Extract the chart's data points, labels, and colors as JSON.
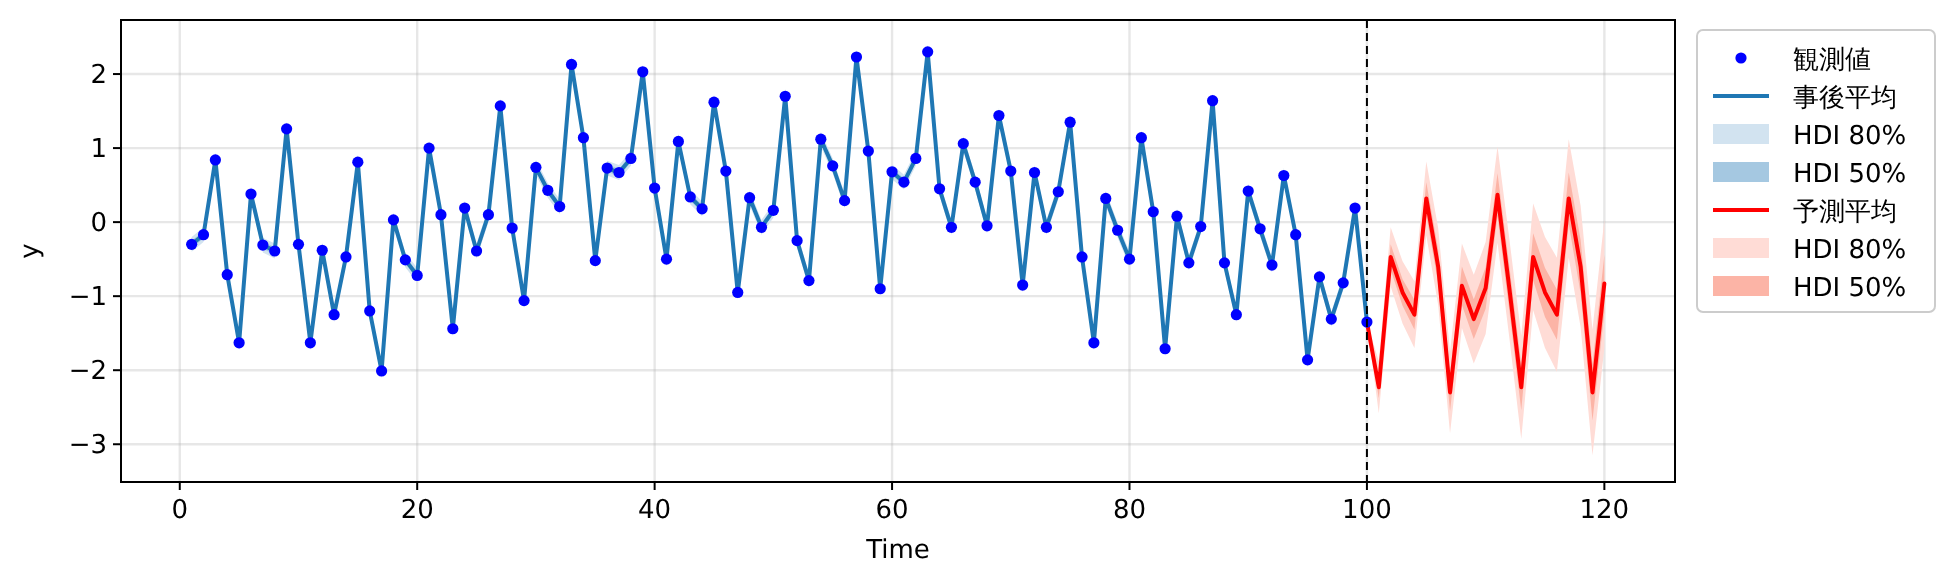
{
  "chart_data": {
    "type": "line",
    "xlabel": "Time",
    "ylabel": "y",
    "xlim": [
      -4.95,
      125.95
    ],
    "ylim": [
      -3.51,
      2.73
    ],
    "xticks": [
      0,
      20,
      40,
      60,
      80,
      100,
      120
    ],
    "yticks": [
      {
        "value": -3,
        "label": "−3"
      },
      {
        "value": -2,
        "label": "−2"
      },
      {
        "value": -1,
        "label": "−1"
      },
      0,
      1,
      2
    ],
    "grid": true,
    "legend": "right",
    "ref_lines": [
      {
        "axis": "x",
        "value": 100,
        "color": "#000000",
        "line_style": "dashed"
      }
    ],
    "x": [
      1,
      2,
      3,
      4,
      5,
      6,
      7,
      8,
      9,
      10,
      11,
      12,
      13,
      14,
      15,
      16,
      17,
      18,
      19,
      20,
      21,
      22,
      23,
      24,
      25,
      26,
      27,
      28,
      29,
      30,
      31,
      32,
      33,
      34,
      35,
      36,
      37,
      38,
      39,
      40,
      41,
      42,
      43,
      44,
      45,
      46,
      47,
      48,
      49,
      50,
      51,
      52,
      53,
      54,
      55,
      56,
      57,
      58,
      59,
      60,
      61,
      62,
      63,
      64,
      65,
      66,
      67,
      68,
      69,
      70,
      71,
      72,
      73,
      74,
      75,
      76,
      77,
      78,
      79,
      80,
      81,
      82,
      83,
      84,
      85,
      86,
      87,
      88,
      89,
      90,
      91,
      92,
      93,
      94,
      95,
      96,
      97,
      98,
      99,
      100
    ],
    "series": [
      {
        "name": "観測値",
        "type": "scatter",
        "marker": "circle",
        "color": "#0000ff",
        "values": [
          -0.3,
          -0.17,
          0.84,
          -0.71,
          -1.63,
          0.38,
          -0.31,
          -0.39,
          1.26,
          -0.3,
          -1.63,
          -0.38,
          -1.25,
          -0.47,
          0.81,
          -1.2,
          -2.01,
          0.03,
          -0.51,
          -0.72,
          1.0,
          0.1,
          -1.44,
          0.19,
          -0.39,
          0.1,
          1.57,
          -0.08,
          -1.06,
          0.74,
          0.43,
          0.21,
          2.13,
          1.14,
          -0.52,
          0.73,
          0.67,
          0.86,
          2.03,
          0.46,
          -0.5,
          1.09,
          0.34,
          0.18,
          1.62,
          0.69,
          -0.95,
          0.33,
          -0.07,
          0.16,
          1.7,
          -0.25,
          -0.79,
          1.12,
          0.76,
          0.29,
          2.23,
          0.96,
          -0.9,
          0.68,
          0.54,
          0.86,
          2.3,
          0.45,
          -0.07,
          1.06,
          0.54,
          -0.05,
          1.44,
          0.69,
          -0.85,
          0.67,
          -0.07,
          0.41,
          1.35,
          -0.47,
          -1.63,
          0.32,
          -0.11,
          -0.5,
          1.14,
          0.14,
          -1.71,
          0.08,
          -0.55,
          -0.06,
          1.64,
          -0.55,
          -1.25,
          0.42,
          -0.09,
          -0.58,
          0.63,
          -0.17,
          -1.86,
          -0.74,
          -1.31,
          -0.82,
          0.19,
          -1.35
        ]
      },
      {
        "name": "事後平均",
        "color": "#1f77b4",
        "values": [
          -0.3,
          -0.17,
          0.84,
          -0.71,
          -1.63,
          0.38,
          -0.31,
          -0.39,
          1.26,
          -0.3,
          -1.63,
          -0.38,
          -1.25,
          -0.47,
          0.81,
          -1.2,
          -2.01,
          0.03,
          -0.51,
          -0.72,
          1.0,
          0.1,
          -1.44,
          0.19,
          -0.39,
          0.1,
          1.57,
          -0.08,
          -1.06,
          0.74,
          0.43,
          0.21,
          2.13,
          1.14,
          -0.52,
          0.73,
          0.67,
          0.86,
          2.03,
          0.46,
          -0.5,
          1.09,
          0.34,
          0.18,
          1.62,
          0.69,
          -0.95,
          0.33,
          -0.07,
          0.16,
          1.7,
          -0.25,
          -0.79,
          1.12,
          0.76,
          0.29,
          2.23,
          0.96,
          -0.9,
          0.68,
          0.54,
          0.86,
          2.3,
          0.45,
          -0.07,
          1.06,
          0.54,
          -0.05,
          1.44,
          0.69,
          -0.85,
          0.67,
          -0.07,
          0.41,
          1.35,
          -0.47,
          -1.63,
          0.32,
          -0.11,
          -0.5,
          1.14,
          0.14,
          -1.71,
          0.08,
          -0.55,
          -0.06,
          1.64,
          -0.55,
          -1.25,
          0.42,
          -0.09,
          -0.58,
          0.63,
          -0.17,
          -1.86,
          -0.74,
          -1.31,
          -0.82,
          0.19,
          -1.35
        ]
      },
      {
        "name": "HDI 80%",
        "type": "line",
        "color": "#d2e3f0",
        "values": [
          null,
          null,
          null,
          null,
          null,
          null,
          null,
          null,
          null,
          null,
          null,
          null,
          null,
          null,
          null,
          null,
          null,
          null,
          null,
          null,
          null,
          null,
          null,
          null,
          null,
          null,
          null,
          null,
          null,
          null,
          null,
          null,
          null,
          null,
          null,
          null,
          null,
          null,
          null,
          null,
          null,
          null,
          null,
          null,
          null,
          null,
          null,
          null,
          null,
          null,
          null,
          null,
          null,
          null,
          null,
          null,
          null,
          null,
          null,
          null,
          null,
          null,
          null,
          null,
          null,
          null,
          null,
          null,
          null,
          null,
          null,
          null,
          null,
          null,
          null,
          null,
          null,
          null,
          null,
          null,
          null,
          null,
          null,
          null,
          null,
          null,
          null,
          null,
          null,
          null,
          null,
          null,
          null,
          null,
          null,
          null,
          null,
          null,
          null,
          null
        ],
        "lower": [
          -0.4,
          -0.27,
          0.74,
          -0.81,
          -1.73,
          0.28,
          -0.41,
          -0.49,
          1.16,
          -0.4,
          -1.73,
          -0.48,
          -1.35,
          -0.57,
          0.71,
          -1.3,
          -2.11,
          -0.07,
          -0.61,
          -0.82,
          0.9,
          0.0,
          -1.54,
          0.09,
          -0.49,
          0.0,
          1.47,
          -0.18,
          -1.16,
          0.64,
          0.33,
          0.11,
          2.03,
          1.04,
          -0.62,
          0.63,
          0.57,
          0.76,
          1.93,
          0.36,
          -0.6,
          0.99,
          0.24,
          0.08,
          1.52,
          0.59,
          -1.05,
          0.23,
          -0.17,
          0.06,
          1.6,
          -0.35,
          -0.89,
          1.02,
          0.66,
          0.19,
          2.13,
          0.86,
          -1.0,
          0.58,
          0.44,
          0.76,
          2.2,
          0.35,
          -0.17,
          0.96,
          0.44,
          -0.15,
          1.34,
          0.59,
          -0.95,
          0.57,
          -0.17,
          0.31,
          1.25,
          -0.57,
          -1.73,
          0.22,
          -0.21,
          -0.6,
          1.04,
          0.04,
          -1.81,
          -0.02,
          -0.65,
          -0.16,
          1.54,
          -0.65,
          -1.35,
          0.32,
          -0.19,
          -0.68,
          0.53,
          -0.27,
          -1.96,
          -0.84,
          -1.41,
          -0.92,
          0.09,
          -1.45
        ],
        "upper": [
          -0.2,
          -0.07,
          0.94,
          -0.61,
          -1.53,
          0.48,
          -0.21,
          -0.29,
          1.36,
          -0.2,
          -1.53,
          -0.28,
          -1.15,
          -0.37,
          0.91,
          -1.1,
          -1.91,
          0.13,
          -0.41,
          -0.62,
          1.1,
          0.2,
          -1.34,
          0.29,
          -0.29,
          0.2,
          1.67,
          0.02,
          -0.96,
          0.84,
          0.53,
          0.31,
          2.23,
          1.24,
          -0.42,
          0.83,
          0.77,
          0.96,
          2.13,
          0.56,
          -0.4,
          1.19,
          0.44,
          0.28,
          1.72,
          0.79,
          -0.85,
          0.43,
          0.03,
          0.26,
          1.8,
          -0.15,
          -0.69,
          1.22,
          0.86,
          0.39,
          2.33,
          1.06,
          -0.8,
          0.78,
          0.64,
          0.96,
          2.4,
          0.55,
          0.03,
          1.16,
          0.64,
          0.05,
          1.54,
          0.79,
          -0.75,
          0.77,
          0.03,
          0.51,
          1.45,
          -0.37,
          -1.53,
          0.42,
          -0.01,
          -0.4,
          1.24,
          0.24,
          -1.61,
          0.18,
          -0.45,
          0.04,
          1.74,
          -0.45,
          -1.15,
          0.52,
          0.01,
          -0.48,
          0.73,
          -0.07,
          -1.76,
          -0.64,
          -1.21,
          -0.72,
          0.29,
          -1.25
        ]
      },
      {
        "name": "HDI 50%",
        "type": "line",
        "color": "#a5c8e1",
        "values": [
          null,
          null,
          null,
          null,
          null,
          null,
          null,
          null,
          null,
          null,
          null,
          null,
          null,
          null,
          null,
          null,
          null,
          null,
          null,
          null,
          null,
          null,
          null,
          null,
          null,
          null,
          null,
          null,
          null,
          null,
          null,
          null,
          null,
          null,
          null,
          null,
          null,
          null,
          null,
          null,
          null,
          null,
          null,
          null,
          null,
          null,
          null,
          null,
          null,
          null,
          null,
          null,
          null,
          null,
          null,
          null,
          null,
          null,
          null,
          null,
          null,
          null,
          null,
          null,
          null,
          null,
          null,
          null,
          null,
          null,
          null,
          null,
          null,
          null,
          null,
          null,
          null,
          null,
          null,
          null,
          null,
          null,
          null,
          null,
          null,
          null,
          null,
          null,
          null,
          null,
          null,
          null,
          null,
          null,
          null,
          null,
          null,
          null,
          null,
          null
        ],
        "lower": [
          -0.35,
          -0.22,
          0.79,
          -0.76,
          -1.68,
          0.33,
          -0.36,
          -0.44,
          1.21,
          -0.35,
          -1.68,
          -0.43,
          -1.3,
          -0.52,
          0.76,
          -1.25,
          -2.06,
          -0.02,
          -0.56,
          -0.77,
          0.95,
          0.05,
          -1.49,
          0.14,
          -0.44,
          0.05,
          1.52,
          -0.13,
          -1.11,
          0.69,
          0.38,
          0.16,
          2.08,
          1.09,
          -0.57,
          0.68,
          0.62,
          0.81,
          1.98,
          0.41,
          -0.55,
          1.04,
          0.29,
          0.13,
          1.57,
          0.64,
          -1.0,
          0.28,
          -0.12,
          0.11,
          1.65,
          -0.3,
          -0.84,
          1.07,
          0.71,
          0.24,
          2.18,
          0.91,
          -0.95,
          0.63,
          0.49,
          0.81,
          2.25,
          0.4,
          -0.12,
          1.01,
          0.49,
          -0.1,
          1.39,
          0.64,
          -0.9,
          0.62,
          -0.12,
          0.36,
          1.3,
          -0.52,
          -1.68,
          0.27,
          -0.16,
          -0.55,
          1.09,
          0.09,
          -1.76,
          0.03,
          -0.6,
          -0.11,
          1.59,
          -0.6,
          -1.3,
          0.37,
          -0.14,
          -0.63,
          0.58,
          -0.22,
          -1.91,
          -0.79,
          -1.36,
          -0.87,
          0.14,
          -1.4
        ],
        "upper": [
          -0.25,
          -0.12,
          0.89,
          -0.66,
          -1.58,
          0.43,
          -0.26,
          -0.34,
          1.31,
          -0.25,
          -1.58,
          -0.33,
          -1.2,
          -0.42,
          0.86,
          -1.15,
          -1.96,
          0.08,
          -0.46,
          -0.67,
          1.05,
          0.15,
          -1.39,
          0.24,
          -0.34,
          0.15,
          1.62,
          -0.03,
          -1.01,
          0.79,
          0.48,
          0.26,
          2.18,
          1.19,
          -0.47,
          0.78,
          0.72,
          0.91,
          2.08,
          0.51,
          -0.45,
          1.14,
          0.39,
          0.23,
          1.67,
          0.74,
          -0.9,
          0.38,
          -0.02,
          0.21,
          1.75,
          -0.2,
          -0.74,
          1.17,
          0.81,
          0.34,
          2.28,
          1.01,
          -0.85,
          0.73,
          0.59,
          0.91,
          2.35,
          0.5,
          -0.02,
          1.11,
          0.59,
          0.0,
          1.49,
          0.74,
          -0.8,
          0.72,
          -0.02,
          0.46,
          1.4,
          -0.42,
          -1.58,
          0.37,
          -0.06,
          -0.45,
          1.19,
          0.19,
          -1.66,
          0.13,
          -0.5,
          -0.01,
          1.69,
          -0.5,
          -1.2,
          0.47,
          -0.04,
          -0.53,
          0.68,
          -0.12,
          -1.81,
          -0.69,
          -1.26,
          -0.82,
          0.24,
          -1.3
        ]
      },
      {
        "name": "予測平均",
        "color": "#ff0000",
        "x": [
          100,
          101,
          102,
          103,
          104,
          105,
          106,
          107,
          108,
          109,
          110,
          111,
          112,
          113,
          114,
          115,
          116,
          117,
          118,
          119,
          120
        ],
        "values": [
          -1.35,
          -2.23,
          -0.47,
          -0.95,
          -1.25,
          0.32,
          -0.6,
          -2.3,
          -0.86,
          -1.31,
          -0.89,
          0.37,
          -0.9,
          -2.23,
          -0.47,
          -0.95,
          -1.25,
          0.32,
          -0.6,
          -2.3,
          -0.83
        ]
      },
      {
        "name": "HDI 80%",
        "type": "line",
        "color": "#ffdcd6",
        "x": [
          100,
          101,
          102,
          103,
          104,
          105,
          106,
          107,
          108,
          109,
          110,
          111,
          112,
          113,
          114,
          115,
          116,
          117,
          118,
          119,
          120
        ],
        "values": [
          null,
          null,
          null,
          null,
          null,
          null,
          null,
          null,
          null,
          null,
          null,
          null,
          null,
          null,
          null,
          null,
          null,
          null,
          null,
          null,
          null
        ],
        "lower": [
          -1.35,
          -2.58,
          -0.87,
          -1.37,
          -1.7,
          -0.18,
          -1.12,
          -2.85,
          -1.43,
          -1.91,
          -1.51,
          -0.28,
          -1.57,
          -2.93,
          -1.19,
          -1.7,
          -2.02,
          -0.48,
          -1.42,
          -3.15,
          -1.7
        ],
        "upper": [
          -1.35,
          -1.88,
          -0.07,
          -0.53,
          -0.8,
          0.82,
          -0.08,
          -1.75,
          -0.29,
          -0.71,
          -0.27,
          1.02,
          -0.23,
          -1.53,
          0.25,
          -0.2,
          -0.48,
          1.12,
          0.22,
          -1.45,
          0.04
        ]
      },
      {
        "name": "HDI 50%",
        "type": "line",
        "color": "#fcb4a6",
        "x": [
          100,
          101,
          102,
          103,
          104,
          105,
          106,
          107,
          108,
          109,
          110,
          111,
          112,
          113,
          114,
          115,
          116,
          117,
          118,
          119,
          120
        ],
        "values": [
          null,
          null,
          null,
          null,
          null,
          null,
          null,
          null,
          null,
          null,
          null,
          null,
          null,
          null,
          null,
          null,
          null,
          null,
          null,
          null,
          null
        ],
        "lower": [
          -1.35,
          -2.38,
          -0.64,
          -1.13,
          -1.45,
          0.1,
          -0.83,
          -2.55,
          -1.12,
          -1.58,
          -1.17,
          0.08,
          -1.2,
          -2.54,
          -0.79,
          -1.28,
          -1.59,
          -0.03,
          -0.96,
          -2.68,
          -1.22
        ],
        "upper": [
          -1.35,
          -2.08,
          -0.3,
          -0.77,
          -1.05,
          0.54,
          -0.37,
          -2.05,
          -0.6,
          -1.04,
          -0.61,
          0.66,
          -0.6,
          -1.92,
          -0.15,
          -0.62,
          -0.91,
          0.67,
          -0.24,
          -1.92,
          -0.44
        ]
      }
    ]
  }
}
